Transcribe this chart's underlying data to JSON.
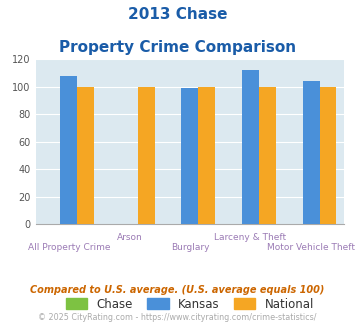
{
  "title_line1": "2013 Chase",
  "title_line2": "Property Crime Comparison",
  "categories": [
    "All Property Crime",
    "Arson",
    "Burglary",
    "Larceny & Theft",
    "Motor Vehicle Theft"
  ],
  "chase_values": [
    0,
    0,
    0,
    0,
    0
  ],
  "kansas_values": [
    108,
    0,
    99,
    112,
    104
  ],
  "national_values": [
    100,
    100,
    100,
    100,
    100
  ],
  "chase_color": "#7dc242",
  "kansas_color": "#4a90d9",
  "national_color": "#f5a623",
  "ylim": [
    0,
    120
  ],
  "yticks": [
    0,
    20,
    40,
    60,
    80,
    100,
    120
  ],
  "plot_bg_color": "#dce9f0",
  "title_color": "#1a5ca8",
  "xlabel_color": "#9b7bb5",
  "footnote1": "Compared to U.S. average. (U.S. average equals 100)",
  "footnote2": "© 2025 CityRating.com - https://www.cityrating.com/crime-statistics/",
  "footnote1_color": "#cc6600",
  "footnote2_color": "#aaaaaa",
  "footnote2_link_color": "#4a90d9",
  "legend_labels": [
    "Chase",
    "Kansas",
    "National"
  ],
  "legend_text_color": "#333333",
  "bar_width": 0.28
}
